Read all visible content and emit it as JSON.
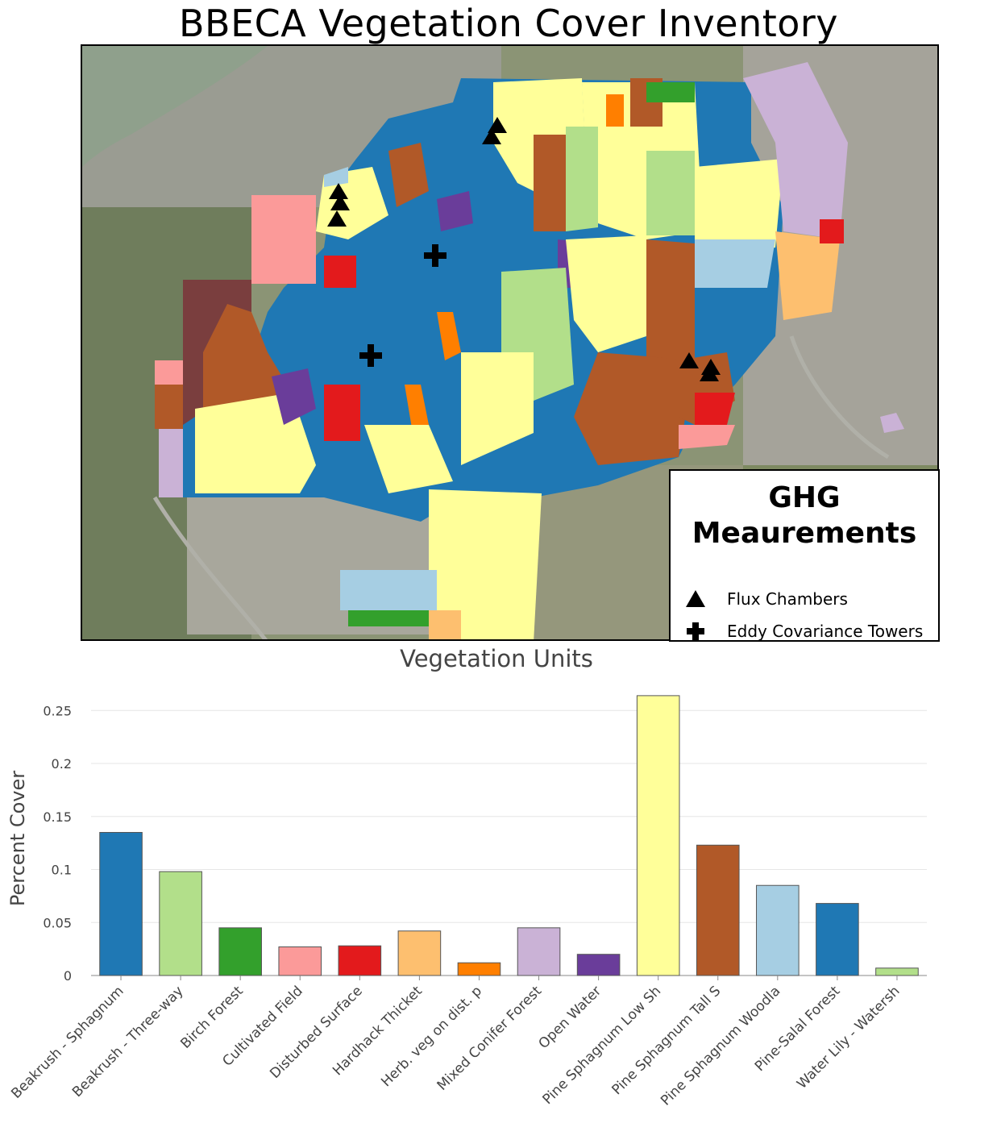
{
  "title": "BBECA Vegetation Cover Inventory",
  "legend": {
    "title_line1": "GHG",
    "title_line2": "Meaurements",
    "items": [
      {
        "label": "Flux Chambers",
        "icon": "triangle-icon"
      },
      {
        "label": "Eddy Covariance Towers",
        "icon": "cross-icon"
      }
    ]
  },
  "chart_data": {
    "type": "bar",
    "title": "Vegetation Units",
    "ylabel": "Percent Cover",
    "xlabel": "",
    "ylim": [
      0,
      0.27
    ],
    "yticks": [
      0,
      0.05,
      0.1,
      0.15,
      0.2,
      0.25
    ],
    "ytick_labels": [
      "0",
      "0.05",
      "0.1",
      "0.15",
      "0.2",
      "0.25"
    ],
    "grid": true,
    "categories": [
      "Beakrush - Sphagnum",
      "Beakrush - Three-way",
      "Birch Forest",
      "Cultivated Field",
      "Disturbed Surface",
      "Hardhack Thicket",
      "Herb. veg on dist. p",
      "Mixed Conifer Forest",
      "Open Water",
      "Pine Sphagnum Low Sh",
      "Pine Sphagnum Tall S",
      "Pine Sphagnum Woodla",
      "Pine-Salal Forest",
      "Water Lily - Watersh"
    ],
    "values": [
      0.135,
      0.098,
      0.045,
      0.027,
      0.028,
      0.042,
      0.012,
      0.045,
      0.02,
      0.264,
      0.123,
      0.085,
      0.068,
      0.007
    ],
    "colors": [
      "#1f78b4",
      "#b2df8a",
      "#33a02c",
      "#fb9a99",
      "#e31a1c",
      "#fdbf6f",
      "#ff7f00",
      "#cab2d6",
      "#6a3d9a",
      "#ffff99",
      "#b15928",
      "#a6cee3",
      "#1f78b4",
      "#b2df8a"
    ]
  }
}
